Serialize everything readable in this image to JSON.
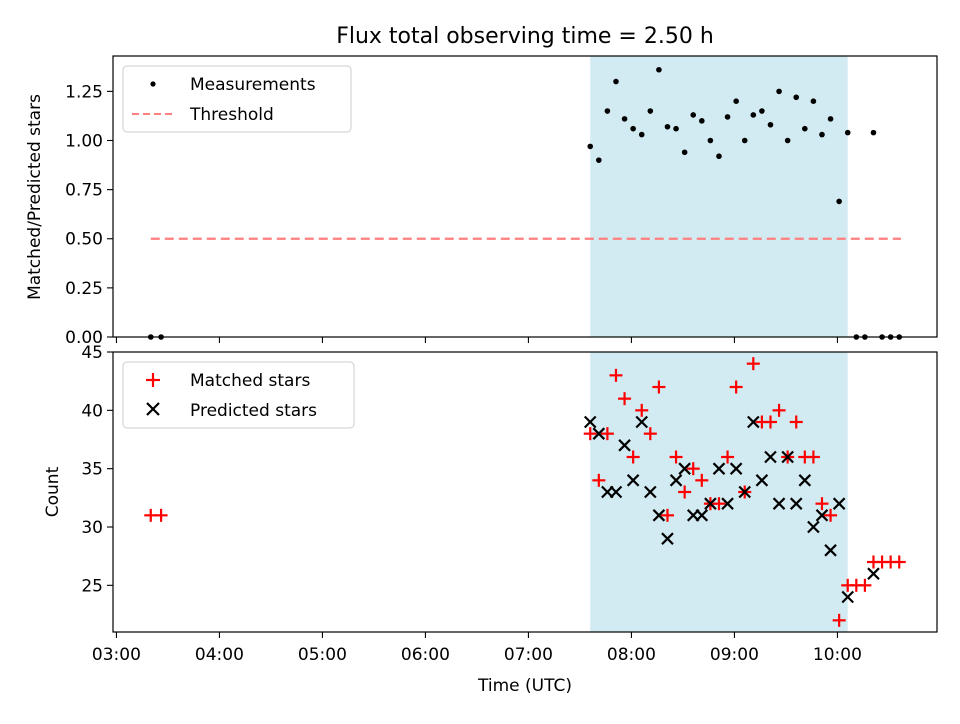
{
  "figure": {
    "title": "Flux total observing time = 2.50 h",
    "xlabel": "Time (UTC)",
    "x_ticks": [
      "03:00",
      "04:00",
      "05:00",
      "06:00",
      "07:00",
      "08:00",
      "09:00",
      "10:00"
    ]
  },
  "colors": {
    "shade": "#add8e6",
    "threshold": "#ff7f7f",
    "matched": "#ff0000",
    "predicted": "#000000",
    "measure": "#000000"
  },
  "chart_data": [
    {
      "type": "scatter",
      "ylabel": "Matched/Predicted stars",
      "xlim": [
        "02:58",
        "10:58"
      ],
      "ylim": [
        0,
        1.43
      ],
      "y_ticks": [
        "0.00",
        "0.25",
        "0.50",
        "0.75",
        "1.00",
        "1.25"
      ],
      "shaded_span": [
        "07:36",
        "10:06"
      ],
      "legend": {
        "position": "upper-left",
        "entries": [
          "Measurements",
          "Threshold"
        ]
      },
      "threshold": {
        "name": "Threshold",
        "y": 0.5,
        "x_range": [
          "03:20",
          "10:37"
        ],
        "style": "dashed"
      },
      "series": [
        {
          "name": "Measurements",
          "points": [
            [
              "03:20",
              0.0
            ],
            [
              "03:26",
              0.0
            ],
            [
              "07:36",
              0.97
            ],
            [
              "07:41",
              0.9
            ],
            [
              "07:46",
              1.15
            ],
            [
              "07:51",
              1.3
            ],
            [
              "07:56",
              1.11
            ],
            [
              "08:01",
              1.06
            ],
            [
              "08:06",
              1.03
            ],
            [
              "08:11",
              1.15
            ],
            [
              "08:16",
              1.36
            ],
            [
              "08:21",
              1.07
            ],
            [
              "08:26",
              1.06
            ],
            [
              "08:31",
              0.94
            ],
            [
              "08:36",
              1.13
            ],
            [
              "08:41",
              1.1
            ],
            [
              "08:46",
              1.0
            ],
            [
              "08:51",
              0.92
            ],
            [
              "08:56",
              1.12
            ],
            [
              "09:01",
              1.2
            ],
            [
              "09:06",
              1.0
            ],
            [
              "09:11",
              1.13
            ],
            [
              "09:16",
              1.15
            ],
            [
              "09:21",
              1.08
            ],
            [
              "09:26",
              1.25
            ],
            [
              "09:31",
              1.0
            ],
            [
              "09:36",
              1.22
            ],
            [
              "09:41",
              1.06
            ],
            [
              "09:46",
              1.2
            ],
            [
              "09:51",
              1.03
            ],
            [
              "09:56",
              1.11
            ],
            [
              "10:01",
              0.69
            ],
            [
              "10:06",
              1.04
            ],
            [
              "10:11",
              0.0
            ],
            [
              "10:16",
              0.0
            ],
            [
              "10:21",
              1.04
            ],
            [
              "10:26",
              0.0
            ],
            [
              "10:31",
              0.0
            ],
            [
              "10:36",
              0.0
            ]
          ]
        }
      ]
    },
    {
      "type": "scatter",
      "ylabel": "Count",
      "xlim": [
        "02:58",
        "10:58"
      ],
      "ylim": [
        21,
        45
      ],
      "y_ticks": [
        "25",
        "30",
        "35",
        "40",
        "45"
      ],
      "shaded_span": [
        "07:36",
        "10:06"
      ],
      "legend": {
        "position": "upper-left",
        "entries": [
          "Matched stars",
          "Predicted stars"
        ]
      },
      "series": [
        {
          "name": "Matched stars",
          "marker": "plus",
          "points": [
            [
              "03:20",
              31
            ],
            [
              "03:26",
              31
            ],
            [
              "07:36",
              38
            ],
            [
              "07:41",
              34
            ],
            [
              "07:46",
              38
            ],
            [
              "07:51",
              43
            ],
            [
              "07:56",
              41
            ],
            [
              "08:01",
              36
            ],
            [
              "08:06",
              40
            ],
            [
              "08:11",
              38
            ],
            [
              "08:16",
              42
            ],
            [
              "08:21",
              31
            ],
            [
              "08:26",
              36
            ],
            [
              "08:31",
              33
            ],
            [
              "08:36",
              35
            ],
            [
              "08:41",
              34
            ],
            [
              "08:46",
              32
            ],
            [
              "08:51",
              32
            ],
            [
              "08:56",
              36
            ],
            [
              "09:01",
              42
            ],
            [
              "09:06",
              33
            ],
            [
              "09:11",
              44
            ],
            [
              "09:16",
              39
            ],
            [
              "09:21",
              39
            ],
            [
              "09:26",
              40
            ],
            [
              "09:31",
              36
            ],
            [
              "09:36",
              39
            ],
            [
              "09:41",
              36
            ],
            [
              "09:46",
              36
            ],
            [
              "09:51",
              32
            ],
            [
              "09:56",
              31
            ],
            [
              "10:01",
              22
            ],
            [
              "10:06",
              25
            ],
            [
              "10:11",
              25
            ],
            [
              "10:16",
              25
            ],
            [
              "10:21",
              27
            ],
            [
              "10:26",
              27
            ],
            [
              "10:31",
              27
            ],
            [
              "10:36",
              27
            ]
          ]
        },
        {
          "name": "Predicted stars",
          "marker": "x",
          "points": [
            [
              "07:36",
              39
            ],
            [
              "07:41",
              38
            ],
            [
              "07:46",
              33
            ],
            [
              "07:51",
              33
            ],
            [
              "07:56",
              37
            ],
            [
              "08:01",
              34
            ],
            [
              "08:06",
              39
            ],
            [
              "08:11",
              33
            ],
            [
              "08:16",
              31
            ],
            [
              "08:21",
              29
            ],
            [
              "08:26",
              34
            ],
            [
              "08:31",
              35
            ],
            [
              "08:36",
              31
            ],
            [
              "08:41",
              31
            ],
            [
              "08:46",
              32
            ],
            [
              "08:51",
              35
            ],
            [
              "08:56",
              32
            ],
            [
              "09:01",
              35
            ],
            [
              "09:06",
              33
            ],
            [
              "09:11",
              39
            ],
            [
              "09:16",
              34
            ],
            [
              "09:21",
              36
            ],
            [
              "09:26",
              32
            ],
            [
              "09:31",
              36
            ],
            [
              "09:36",
              32
            ],
            [
              "09:41",
              34
            ],
            [
              "09:46",
              30
            ],
            [
              "09:51",
              31
            ],
            [
              "09:56",
              28
            ],
            [
              "10:01",
              32
            ],
            [
              "10:06",
              24
            ],
            [
              "10:21",
              26
            ]
          ]
        }
      ]
    }
  ]
}
